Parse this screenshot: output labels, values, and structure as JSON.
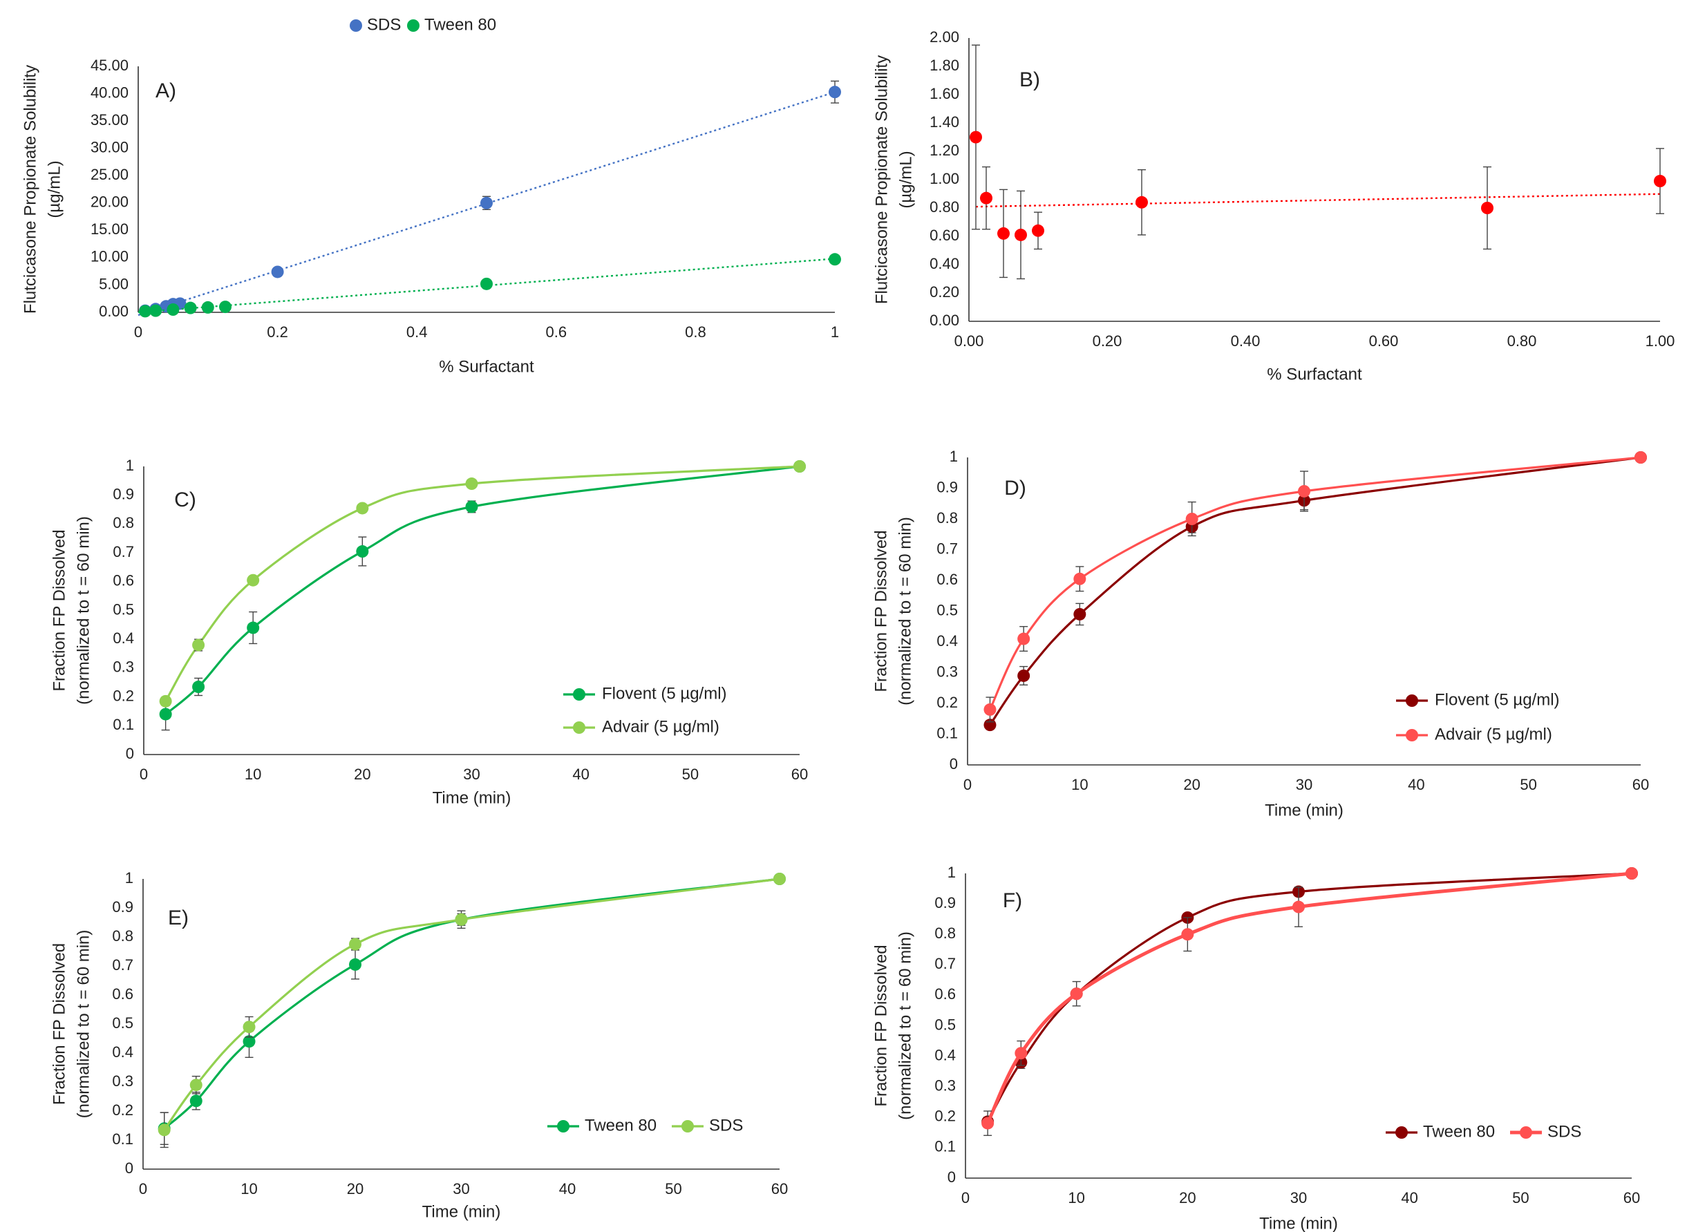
{
  "chart_data": [
    {
      "id": "A",
      "type": "scatter",
      "panel_label": "A)",
      "xlabel": "% Surfactant",
      "ylabel_lines": [
        "Flutcicasone Propionate Solubility",
        "(µg/mL)"
      ],
      "xlim": [
        0,
        1
      ],
      "ylim": [
        0,
        45
      ],
      "xticks": [
        0,
        0.2,
        0.4,
        0.6,
        0.8,
        1
      ],
      "xtick_labels": [
        "0",
        "0.2",
        "0.4",
        "0.6",
        "0.8",
        "1"
      ],
      "yticks": [
        0,
        5,
        10,
        15,
        20,
        25,
        30,
        35,
        40,
        45
      ],
      "ytick_labels": [
        "0.00",
        "5.00",
        "10.00",
        "15.00",
        "20.00",
        "25.00",
        "30.00",
        "35.00",
        "40.00",
        "45.00"
      ],
      "legend_position": "top",
      "series": [
        {
          "name": "SDS",
          "color": "#4472C4",
          "trendline": "linear-dotted",
          "x": [
            0.01,
            0.025,
            0.04,
            0.05,
            0.06,
            0.2,
            0.5,
            1.0
          ],
          "y": [
            0.3,
            0.6,
            1.1,
            1.5,
            1.6,
            7.4,
            20.0,
            40.3
          ],
          "err": [
            0,
            0,
            0,
            0,
            0,
            0,
            1.2,
            2.0
          ]
        },
        {
          "name": "Tween 80",
          "color": "#00B050",
          "trendline": "linear-dotted",
          "x": [
            0.01,
            0.025,
            0.05,
            0.075,
            0.1,
            0.125,
            0.5,
            1.0
          ],
          "y": [
            0.2,
            0.3,
            0.5,
            0.8,
            0.9,
            1.0,
            5.2,
            9.7
          ],
          "err": [
            0,
            0,
            0,
            0,
            0,
            0,
            0,
            0
          ]
        }
      ]
    },
    {
      "id": "B",
      "type": "scatter",
      "panel_label": "B)",
      "xlabel": "% Surfactant",
      "ylabel_lines": [
        "Flutcicasone Propionate Solubility",
        "(µg/mL)"
      ],
      "xlim": [
        0,
        1
      ],
      "ylim": [
        0,
        2
      ],
      "xticks": [
        0,
        0.2,
        0.4,
        0.6,
        0.8,
        1
      ],
      "xtick_labels": [
        "0.00",
        "0.20",
        "0.40",
        "0.60",
        "0.80",
        "1.00"
      ],
      "yticks": [
        0,
        0.2,
        0.4,
        0.6,
        0.8,
        1.0,
        1.2,
        1.4,
        1.6,
        1.8,
        2.0
      ],
      "ytick_labels": [
        "0.00",
        "0.20",
        "0.40",
        "0.60",
        "0.80",
        "1.00",
        "1.20",
        "1.40",
        "1.60",
        "1.80",
        "2.00"
      ],
      "series": [
        {
          "color": "#FF0000",
          "trendline": "linear-dotted",
          "x": [
            0.01,
            0.025,
            0.05,
            0.075,
            0.1,
            0.25,
            0.75,
            1.0
          ],
          "y": [
            1.3,
            0.87,
            0.62,
            0.61,
            0.64,
            0.84,
            0.8,
            0.99
          ],
          "err": [
            0.65,
            0.22,
            0.31,
            0.31,
            0.13,
            0.23,
            0.29,
            0.23
          ]
        }
      ]
    },
    {
      "id": "C",
      "type": "line",
      "panel_label": "C)",
      "xlabel": "Time (min)",
      "ylabel_lines": [
        "Fraction FP Dissolved",
        "(normalized to t = 60 min)"
      ],
      "xlim": [
        0,
        60
      ],
      "ylim": [
        0,
        1
      ],
      "xticks": [
        0,
        10,
        20,
        30,
        40,
        50,
        60
      ],
      "xtick_labels": [
        "0",
        "10",
        "20",
        "30",
        "40",
        "50",
        "60"
      ],
      "yticks": [
        0,
        0.1,
        0.2,
        0.3,
        0.4,
        0.5,
        0.6,
        0.7,
        0.8,
        0.9,
        1
      ],
      "ytick_labels": [
        "0",
        "0.1",
        "0.2",
        "0.3",
        "0.4",
        "0.5",
        "0.6",
        "0.7",
        "0.8",
        "0.9",
        "1"
      ],
      "legend_position": "lower-right",
      "x": [
        2,
        5,
        10,
        20,
        30,
        60
      ],
      "series": [
        {
          "name": "Flovent (5 µg/ml)",
          "color": "#00B050",
          "values": [
            0.14,
            0.235,
            0.44,
            0.705,
            0.86,
            1.0
          ],
          "err": [
            0.055,
            0.03,
            0.055,
            0.05,
            0.02,
            0
          ]
        },
        {
          "name": "Advair (5 µg/ml)",
          "color": "#92D050",
          "values": [
            0.185,
            0.38,
            0.605,
            0.855,
            0.94,
            1.0
          ],
          "err": [
            0.015,
            0.02,
            0.01,
            0.01,
            0.01,
            0
          ]
        }
      ]
    },
    {
      "id": "D",
      "type": "line",
      "panel_label": "D)",
      "xlabel": "Time (min)",
      "ylabel_lines": [
        "Fraction FP Dissolved",
        "(normalized to t = 60 min)"
      ],
      "xlim": [
        0,
        60
      ],
      "ylim": [
        0,
        1
      ],
      "xticks": [
        0,
        10,
        20,
        30,
        40,
        50,
        60
      ],
      "xtick_labels": [
        "0",
        "10",
        "20",
        "30",
        "40",
        "50",
        "60"
      ],
      "yticks": [
        0,
        0.1,
        0.2,
        0.3,
        0.4,
        0.5,
        0.6,
        0.7,
        0.8,
        0.9,
        1
      ],
      "ytick_labels": [
        "0",
        "0.1",
        "0.2",
        "0.3",
        "0.4",
        "0.5",
        "0.6",
        "0.7",
        "0.8",
        "0.9",
        "1"
      ],
      "legend_position": "lower-right",
      "x": [
        2,
        5,
        10,
        20,
        30,
        60
      ],
      "series": [
        {
          "name": "Flovent (5 µg/ml)",
          "color": "#8B0000",
          "values": [
            0.13,
            0.29,
            0.49,
            0.775,
            0.86,
            1.0
          ],
          "err": [
            0.01,
            0.03,
            0.035,
            0.02,
            0.03,
            0
          ]
        },
        {
          "name": "Advair (5 µg/ml)",
          "color": "#FF5050",
          "values": [
            0.18,
            0.41,
            0.605,
            0.8,
            0.89,
            1.0
          ],
          "err": [
            0.04,
            0.04,
            0.04,
            0.055,
            0.065,
            0
          ]
        }
      ]
    },
    {
      "id": "E",
      "type": "line",
      "panel_label": "E)",
      "xlabel": "Time (min)",
      "ylabel_lines": [
        "Fraction FP Dissolved",
        "(normalized to t = 60 min)"
      ],
      "xlim": [
        0,
        60
      ],
      "ylim": [
        0,
        1
      ],
      "xticks": [
        0,
        10,
        20,
        30,
        40,
        50,
        60
      ],
      "xtick_labels": [
        "0",
        "10",
        "20",
        "30",
        "40",
        "50",
        "60"
      ],
      "yticks": [
        0,
        0.1,
        0.2,
        0.3,
        0.4,
        0.5,
        0.6,
        0.7,
        0.8,
        0.9,
        1
      ],
      "ytick_labels": [
        "0",
        "0.1",
        "0.2",
        "0.3",
        "0.4",
        "0.5",
        "0.6",
        "0.7",
        "0.8",
        "0.9",
        "1"
      ],
      "legend_position": "bottom-right",
      "x": [
        2,
        5,
        10,
        20,
        30,
        60
      ],
      "series": [
        {
          "name": "Tween 80",
          "color": "#00B050",
          "values": [
            0.14,
            0.235,
            0.44,
            0.705,
            0.86,
            1.0
          ],
          "err": [
            0.055,
            0.03,
            0.055,
            0.05,
            0.02,
            0
          ]
        },
        {
          "name": "SDS",
          "color": "#92D050",
          "values": [
            0.135,
            0.29,
            0.49,
            0.775,
            0.86,
            1.0
          ],
          "err": [
            0.06,
            0.03,
            0.035,
            0.02,
            0.03,
            0
          ]
        }
      ]
    },
    {
      "id": "F",
      "type": "line",
      "panel_label": "F)",
      "xlabel": "Time (min)",
      "ylabel_lines": [
        "Fraction FP Dissolved",
        "(normalized to t = 60 min)"
      ],
      "xlim": [
        0,
        60
      ],
      "ylim": [
        0,
        1
      ],
      "xticks": [
        0,
        10,
        20,
        30,
        40,
        50,
        60
      ],
      "xtick_labels": [
        "0",
        "10",
        "20",
        "30",
        "40",
        "50",
        "60"
      ],
      "yticks": [
        0,
        0.1,
        0.2,
        0.3,
        0.4,
        0.5,
        0.6,
        0.7,
        0.8,
        0.9,
        1
      ],
      "ytick_labels": [
        "0",
        "0.1",
        "0.2",
        "0.3",
        "0.4",
        "0.5",
        "0.6",
        "0.7",
        "0.8",
        "0.9",
        "1"
      ],
      "legend_position": "bottom-right",
      "x": [
        2,
        5,
        10,
        20,
        30,
        60
      ],
      "series": [
        {
          "name": "Tween 80",
          "color": "#8B0000",
          "values": [
            0.185,
            0.38,
            0.605,
            0.855,
            0.94,
            1.0
          ],
          "err": [
            0.015,
            0.02,
            0.01,
            0.01,
            0.01,
            0
          ]
        },
        {
          "name": "SDS",
          "color": "#FF5050",
          "values": [
            0.18,
            0.41,
            0.605,
            0.8,
            0.89,
            1.0
          ],
          "err": [
            0.04,
            0.04,
            0.04,
            0.055,
            0.065,
            0
          ]
        }
      ]
    }
  ]
}
